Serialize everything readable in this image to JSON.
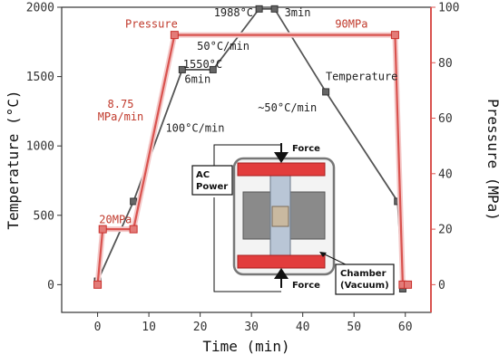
{
  "chart_data": {
    "type": "line",
    "xlabel": "Time (min)",
    "ylabel_left": "Temperature (°C)",
    "ylabel_right": "Pressure (MPa)",
    "xlim": [
      -7,
      65
    ],
    "ylim_left": [
      -200,
      2000
    ],
    "ylim_right": [
      -10,
      100
    ],
    "xticks": [
      "0",
      "10",
      "20",
      "30",
      "40",
      "50",
      "60"
    ],
    "yticks_left": [
      "0",
      "500",
      "1000",
      "1500",
      "2000"
    ],
    "yticks_right": [
      "0",
      "20",
      "40",
      "60",
      "80",
      "100"
    ],
    "series": [
      {
        "name": "Temperature",
        "axis": "left",
        "color": "#555555",
        "x": [
          0,
          7,
          16.5,
          22.5,
          31.5,
          34.5,
          44.5,
          58.5,
          59.5
        ],
        "y": [
          25,
          600,
          1550,
          1550,
          1988,
          1988,
          1390,
          600,
          -30
        ]
      },
      {
        "name": "Pressure",
        "axis": "right",
        "color": "#d9534f",
        "x": [
          0,
          1,
          7,
          15,
          58,
          59.5,
          60.5
        ],
        "y": [
          0,
          20,
          20,
          90,
          90,
          0,
          0
        ]
      }
    ],
    "annotations": [
      {
        "text": "Pressure",
        "color": "#c0392b",
        "x": 10.5,
        "y_right": 94
      },
      {
        "text": "8.75",
        "color": "#c0392b",
        "x": 4.5,
        "y_right": 65
      },
      {
        "text": "MPa/min",
        "color": "#c0392b",
        "x": 4.5,
        "y_right": 60.5
      },
      {
        "text": "20MPa",
        "color": "#c0392b",
        "x": 3.5,
        "y_right": 23.5
      },
      {
        "text": "50°C/min",
        "color": "#222222",
        "x": 24.5,
        "y_left": 1720
      },
      {
        "text": "1550°C",
        "color": "#222222",
        "x": 20.5,
        "y_left": 1590
      },
      {
        "text": "6min",
        "color": "#222222",
        "x": 19.5,
        "y_left": 1480
      },
      {
        "text": "100°C/min",
        "color": "#222222",
        "x": 19,
        "y_left": 1130
      },
      {
        "text": "1988°C",
        "color": "#222222",
        "x": 26.5,
        "y_left": 1960
      },
      {
        "text": "3min",
        "color": "#222222",
        "x": 39,
        "y_left": 1960
      },
      {
        "text": "90MPa",
        "color": "#c0392b",
        "x": 49.5,
        "y_right": 94
      },
      {
        "text": "Temperature",
        "color": "#222222",
        "x": 51.5,
        "y_left": 1500
      },
      {
        "text": "~50°C/min",
        "color": "#222222",
        "x": 37,
        "y_left": 1275
      }
    ],
    "inset": {
      "force_top": "Force",
      "force_bottom": "Force",
      "ac_power_line1": "AC",
      "ac_power_line2": "Power",
      "chamber_line1": "Chamber",
      "chamber_line2": "(Vacuum)"
    }
  }
}
